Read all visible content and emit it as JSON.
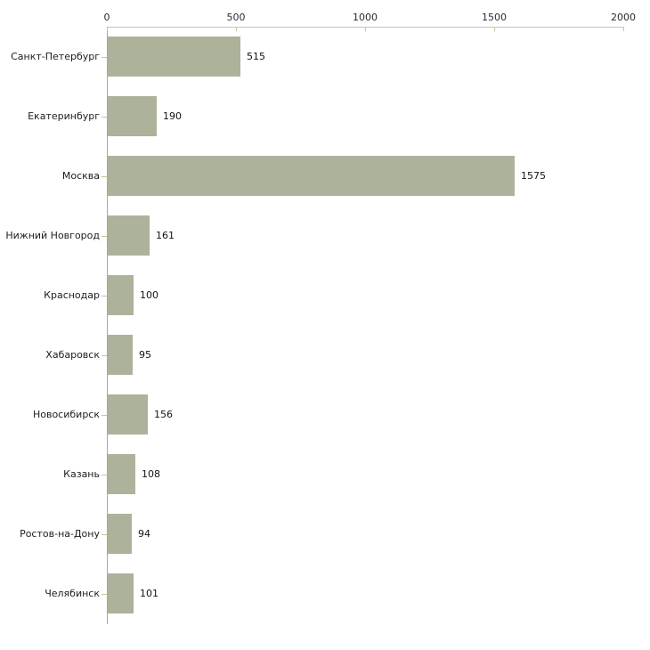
{
  "chart_data": {
    "type": "bar",
    "orientation": "horizontal",
    "title": "",
    "xlabel": "",
    "ylabel": "",
    "categories": [
      "Санкт-Петербург",
      "Екатеринбург",
      "Москва",
      "Нижний Новгород",
      "Краснодар",
      "Хабаровск",
      "Новосибирск",
      "Казань",
      "Ростов-на-Дону",
      "Челябинск"
    ],
    "values": [
      515,
      190,
      1575,
      161,
      100,
      95,
      156,
      108,
      94,
      101
    ],
    "value_labels_shown": true,
    "xlim": [
      0,
      2000
    ],
    "x_ticks": [
      0,
      500,
      1000,
      1500,
      2000
    ],
    "x_axis_position": "top",
    "grid": false,
    "legend": "none",
    "colors": {
      "bar": "#adb29a",
      "tick_mark": "#c8c5a0",
      "x_axis_line": "#c4c4c4",
      "y_axis_line": "#a8a8a8",
      "label_text": "#1c1c1c",
      "background": "#ffffff"
    }
  }
}
